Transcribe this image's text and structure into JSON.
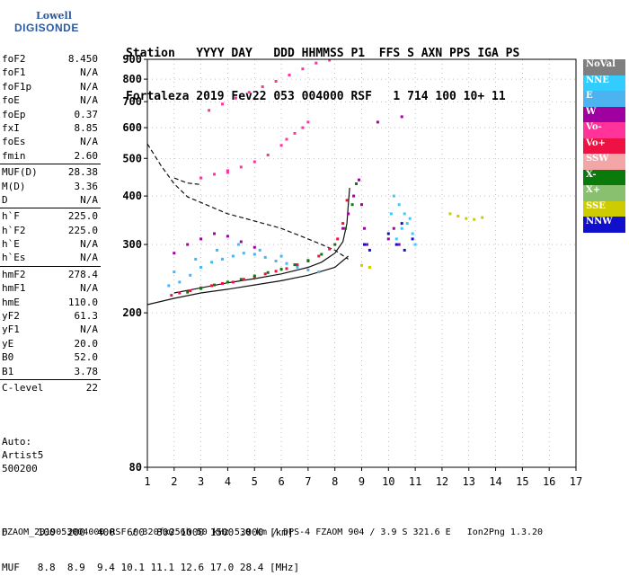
{
  "logo": {
    "line1": "Lowell",
    "line2": "DIGISONDE"
  },
  "header": {
    "labels": "Station   YYYY DAY   DDD HHMMSS P1  FFS S AXN PPS IGA PS",
    "values": "Fortaleza 2019 Fev22 053 004000 RSF   1 714 100 10+ 11"
  },
  "params": [
    {
      "k": "foF2",
      "v": "8.450"
    },
    {
      "k": "foF1",
      "v": "N/A"
    },
    {
      "k": "foF1p",
      "v": "N/A"
    },
    {
      "k": "foE",
      "v": "N/A"
    },
    {
      "k": "foEp",
      "v": "0.37"
    },
    {
      "k": "fxI",
      "v": "8.85"
    },
    {
      "k": "foEs",
      "v": "N/A"
    },
    {
      "k": "fmin",
      "v": "2.60"
    },
    {
      "sep": true
    },
    {
      "k": "MUF(D)",
      "v": "28.38"
    },
    {
      "k": "M(D)",
      "v": "3.36"
    },
    {
      "k": "D",
      "v": "N/A"
    },
    {
      "sep": true
    },
    {
      "k": "h`F",
      "v": "225.0"
    },
    {
      "k": "h`F2",
      "v": "225.0"
    },
    {
      "k": "h`E",
      "v": "N/A"
    },
    {
      "k": "h`Es",
      "v": "N/A"
    },
    {
      "sep": true
    },
    {
      "k": "hmF2",
      "v": "278.4"
    },
    {
      "k": "hmF1",
      "v": "N/A"
    },
    {
      "k": "hmE",
      "v": "110.0"
    },
    {
      "k": "yF2",
      "v": "61.3"
    },
    {
      "k": "yF1",
      "v": "N/A"
    },
    {
      "k": "yE",
      "v": "20.0"
    },
    {
      "k": "B0",
      "v": "52.0"
    },
    {
      "k": "B1",
      "v": "3.78"
    },
    {
      "sep": true
    },
    {
      "k": "C-level",
      "v": "22"
    }
  ],
  "auto": {
    "line1": "Auto:",
    "line2": "Artist5",
    "line3": "500200"
  },
  "legend": [
    {
      "label": "NoVal",
      "color": "#7f7f7f"
    },
    {
      "label": "NNE",
      "color": "#33ccff"
    },
    {
      "label": "E",
      "color": "#4db3f0"
    },
    {
      "label": "W",
      "color": "#a0009f"
    },
    {
      "label": "Vo-",
      "color": "#ff3399"
    },
    {
      "label": "Vo+",
      "color": "#ee1144"
    },
    {
      "label": "SSW",
      "color": "#f4a6a6"
    },
    {
      "label": "X-",
      "color": "#0a7a0a"
    },
    {
      "label": "X+",
      "color": "#88c070"
    },
    {
      "label": "SSE",
      "color": "#cccc00"
    },
    {
      "label": "NNW",
      "color": "#1010cc"
    }
  ],
  "footer": {
    "d_row": "D     100  200  400  600  800 1000 1500 3000 [km]",
    "muf_row": "MUF   8.8  8.9  9.4 10.1 11.1 12.6 17.0 28.4 [MHz]",
    "file_line": "FZAOM_2019053004000.RSF / 320fx256h 50 kHz 5.0 km / DPS-4 FZAOM 904 / 3.9 S 321.6 E   Ion2Png 1.3.20"
  },
  "chart_data": {
    "type": "scatter",
    "xlim": [
      1,
      17
    ],
    "ylim": [
      80,
      900
    ],
    "y_scale": "log",
    "x_ticks": [
      1,
      2,
      3,
      4,
      5,
      6,
      7,
      8,
      9,
      10,
      11,
      12,
      13,
      14,
      15,
      16,
      17
    ],
    "y_ticks": [
      80,
      200,
      300,
      400,
      500,
      600,
      700,
      800,
      900
    ],
    "grid": true,
    "legend_position": "right",
    "traces": [
      {
        "category": "E",
        "color": "#4db3f0",
        "points": [
          [
            1.8,
            235
          ],
          [
            2.2,
            240
          ],
          [
            2.6,
            250
          ],
          [
            3.0,
            262
          ],
          [
            3.4,
            270
          ],
          [
            3.8,
            275
          ],
          [
            4.2,
            280
          ],
          [
            4.6,
            285
          ],
          [
            5.0,
            283
          ],
          [
            5.4,
            278
          ],
          [
            5.8,
            272
          ],
          [
            6.2,
            268
          ],
          [
            6.6,
            262
          ],
          [
            7.0,
            258
          ],
          [
            7.4,
            255
          ],
          [
            2.0,
            255
          ],
          [
            2.8,
            275
          ],
          [
            3.6,
            290
          ],
          [
            4.4,
            300
          ],
          [
            5.2,
            290
          ],
          [
            6.0,
            280
          ]
        ]
      },
      {
        "category": "Vo+",
        "color": "#ee1144",
        "points": [
          [
            1.9,
            222
          ],
          [
            2.2,
            225
          ],
          [
            2.6,
            228
          ],
          [
            3.0,
            232
          ],
          [
            3.4,
            235
          ],
          [
            3.8,
            238
          ],
          [
            4.2,
            240
          ],
          [
            4.6,
            244
          ],
          [
            5.0,
            247
          ],
          [
            5.4,
            252
          ],
          [
            5.8,
            256
          ],
          [
            6.2,
            260
          ],
          [
            6.6,
            266
          ],
          [
            7.0,
            272
          ],
          [
            7.4,
            280
          ],
          [
            7.8,
            292
          ],
          [
            8.1,
            310
          ],
          [
            8.3,
            340
          ],
          [
            8.45,
            390
          ]
        ]
      },
      {
        "category": "X-",
        "color": "#0a7a0a",
        "points": [
          [
            2.5,
            226
          ],
          [
            3.0,
            231
          ],
          [
            3.5,
            236
          ],
          [
            4.0,
            240
          ],
          [
            4.5,
            244
          ],
          [
            5.0,
            249
          ],
          [
            5.5,
            254
          ],
          [
            6.0,
            259
          ],
          [
            6.5,
            266
          ],
          [
            7.0,
            273
          ],
          [
            7.5,
            283
          ],
          [
            8.0,
            300
          ],
          [
            8.4,
            330
          ],
          [
            8.65,
            380
          ],
          [
            8.8,
            430
          ]
        ]
      },
      {
        "category": "W",
        "color": "#a0009f",
        "points": [
          [
            2.0,
            285
          ],
          [
            2.5,
            300
          ],
          [
            3.0,
            310
          ],
          [
            3.5,
            320
          ],
          [
            4.0,
            315
          ],
          [
            4.5,
            305
          ],
          [
            5.0,
            295
          ],
          [
            8.3,
            330
          ],
          [
            8.5,
            360
          ],
          [
            8.7,
            400
          ],
          [
            8.9,
            440
          ],
          [
            9.0,
            380
          ],
          [
            9.1,
            330
          ],
          [
            9.2,
            300
          ],
          [
            10.0,
            310
          ],
          [
            10.2,
            330
          ],
          [
            10.4,
            300
          ],
          [
            9.6,
            620
          ],
          [
            10.5,
            640
          ]
        ]
      },
      {
        "category": "NNE",
        "color": "#33ccff",
        "points": [
          [
            10.2,
            400
          ],
          [
            10.4,
            380
          ],
          [
            10.6,
            360
          ],
          [
            10.8,
            350
          ],
          [
            10.5,
            330
          ],
          [
            10.9,
            320
          ],
          [
            10.3,
            310
          ],
          [
            11.0,
            300
          ],
          [
            10.7,
            340
          ],
          [
            10.1,
            360
          ]
        ]
      },
      {
        "category": "NNW",
        "color": "#1010cc",
        "points": [
          [
            10.0,
            320
          ],
          [
            10.3,
            300
          ],
          [
            10.6,
            290
          ],
          [
            10.9,
            310
          ],
          [
            10.5,
            340
          ],
          [
            9.1,
            300
          ],
          [
            9.3,
            290
          ]
        ]
      },
      {
        "category": "SSE",
        "color": "#cccc00",
        "points": [
          [
            12.3,
            360
          ],
          [
            12.6,
            355
          ],
          [
            12.9,
            350
          ],
          [
            13.2,
            348
          ],
          [
            13.5,
            352
          ],
          [
            9.0,
            265
          ],
          [
            9.3,
            262
          ]
        ]
      },
      {
        "category": "Vo-",
        "color": "#ff3399",
        "points": [
          [
            3.0,
            445
          ],
          [
            3.5,
            455
          ],
          [
            4.0,
            465
          ],
          [
            4.5,
            475
          ],
          [
            5.0,
            490
          ],
          [
            5.5,
            510
          ],
          [
            6.0,
            540
          ],
          [
            6.5,
            580
          ],
          [
            7.0,
            620
          ],
          [
            3.3,
            665
          ],
          [
            3.8,
            690
          ],
          [
            4.3,
            715
          ],
          [
            4.8,
            740
          ],
          [
            5.3,
            765
          ],
          [
            5.8,
            790
          ],
          [
            6.3,
            820
          ],
          [
            6.8,
            850
          ],
          [
            7.3,
            880
          ],
          [
            7.8,
            895
          ],
          [
            4.0,
            460
          ],
          [
            6.2,
            560
          ],
          [
            6.8,
            600
          ]
        ]
      }
    ],
    "curves": [
      {
        "name": "",
        "style": "dashed",
        "points": [
          [
            1.0,
            545
          ],
          [
            1.5,
            480
          ],
          [
            2.0,
            430
          ],
          [
            2.5,
            398
          ],
          [
            3.0,
            385
          ],
          [
            3.5,
            372
          ],
          [
            4.0,
            360
          ],
          [
            5.0,
            345
          ],
          [
            6.0,
            330
          ],
          [
            7.0,
            310
          ],
          [
            7.5,
            300
          ],
          [
            8.0,
            290
          ],
          [
            8.5,
            275
          ]
        ]
      },
      {
        "name": "",
        "style": "dashed",
        "points": [
          [
            2.0,
            445
          ],
          [
            2.5,
            432
          ],
          [
            3.0,
            428
          ]
        ]
      },
      {
        "name": "",
        "style": "solid",
        "points": [
          [
            1.0,
            210
          ],
          [
            2.0,
            218
          ],
          [
            3.0,
            225
          ],
          [
            4.0,
            230
          ],
          [
            5.0,
            236
          ],
          [
            6.0,
            242
          ],
          [
            7.0,
            250
          ],
          [
            8.0,
            262
          ],
          [
            8.5,
            280
          ]
        ]
      },
      {
        "name": "",
        "style": "solid",
        "points": [
          [
            2.0,
            225
          ],
          [
            3.0,
            232
          ],
          [
            4.0,
            239
          ],
          [
            5.0,
            245
          ],
          [
            6.0,
            252
          ],
          [
            7.0,
            262
          ],
          [
            7.5,
            270
          ],
          [
            8.0,
            285
          ],
          [
            8.3,
            305
          ],
          [
            8.45,
            340
          ],
          [
            8.5,
            380
          ],
          [
            8.55,
            420
          ]
        ]
      }
    ]
  }
}
